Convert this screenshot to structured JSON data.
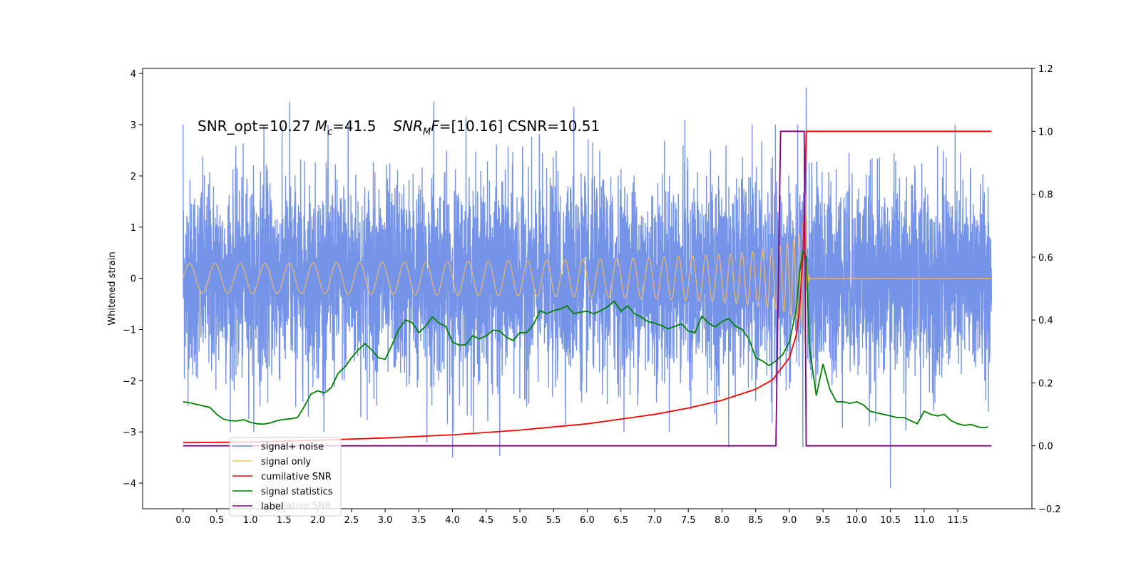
{
  "chart_data": {
    "type": "line",
    "title": "",
    "xlabel": "",
    "ylabel": "Whitened strain",
    "xlim": [
      -0.6,
      12.6
    ],
    "xticks": [
      "0.0",
      "0.5",
      "1.0",
      "1.5",
      "2.0",
      "2.5",
      "3.0",
      "3.5",
      "4.0",
      "4.5",
      "5.0",
      "5.5",
      "6.0",
      "6.5",
      "7.0",
      "7.5",
      "8.0",
      "8.5",
      "9.0",
      "9.5",
      "10.0",
      "10.5",
      "11.0",
      "11.5"
    ],
    "ylim": [
      -4.5,
      4.1
    ],
    "yticks": [
      "4",
      "3",
      "2",
      "1",
      "0",
      "−1",
      "−2",
      "−3",
      "−4"
    ],
    "y2lim": [
      -0.2,
      1.2
    ],
    "y2ticks": [
      "1.2",
      "1.0",
      "0.8",
      "0.6",
      "0.4",
      "0.2",
      "0.0",
      "−0.2"
    ],
    "grid": false,
    "annotation": {
      "prefix": "SNR_opt=10.27 ",
      "mc_sym": "M",
      "mc_sub": "c",
      "mc_val": "=41.5",
      "snr_sym": "SNR",
      "snr_sub": "M",
      "snr_sym2": "F",
      "snr_rest": "=[10.16] CSNR=10.51"
    },
    "legend": {
      "placement": "lower-left",
      "entries": [
        {
          "label": "signal+ noise",
          "color": "#6f8ee6"
        },
        {
          "label": "signal only",
          "color": "#ffbf55"
        },
        {
          "label": "cumilative SNR",
          "color": "#ff0000"
        },
        {
          "label": "signal statistics",
          "color": "#008000"
        },
        {
          "label": "label",
          "color": "#800080"
        }
      ],
      "ghost_text": "cumilative SNR"
    },
    "series": [
      {
        "name": "signal+ noise",
        "axis": "left",
        "color": "#6f8ee6",
        "x_start": 0.0,
        "x_end": 12.0,
        "envelope_std": 0.95,
        "peaks": [
          {
            "x": 0.0,
            "y": 3.0
          },
          {
            "x": 1.2,
            "y": 3.0
          },
          {
            "x": 1.58,
            "y": 3.45
          },
          {
            "x": 2.45,
            "y": 3.05
          },
          {
            "x": 3.72,
            "y": 3.45
          },
          {
            "x": 4.2,
            "y": 3.15
          },
          {
            "x": 5.8,
            "y": 3.35
          },
          {
            "x": 7.45,
            "y": 3.1
          },
          {
            "x": 9.25,
            "y": 3.72
          },
          {
            "x": 3.62,
            "y": -3.2
          },
          {
            "x": 4.0,
            "y": -3.5
          },
          {
            "x": 4.7,
            "y": -3.47
          },
          {
            "x": 8.1,
            "y": -3.3
          },
          {
            "x": 10.5,
            "y": -4.1
          },
          {
            "x": 9.2,
            "y": -3.3
          }
        ]
      },
      {
        "name": "signal only",
        "axis": "left",
        "color": "#ffbf55",
        "x_start": 0.0,
        "x_end": 12.0,
        "chirp_merger_x": 9.25,
        "chirp_peak_amplitude": 2.2
      },
      {
        "name": "cumilative SNR",
        "axis": "right",
        "color": "#ff0000",
        "x": [
          0.0,
          1.0,
          2.0,
          3.0,
          4.0,
          5.0,
          6.0,
          7.0,
          7.5,
          8.0,
          8.5,
          8.75,
          9.0,
          9.1,
          9.15,
          9.2,
          9.23,
          9.25,
          9.5,
          10.0,
          11.0,
          12.0
        ],
        "y": [
          0.01,
          0.012,
          0.018,
          0.025,
          0.035,
          0.05,
          0.07,
          0.1,
          0.12,
          0.145,
          0.18,
          0.21,
          0.28,
          0.35,
          0.43,
          0.6,
          0.8,
          1.0,
          1.0,
          1.0,
          1.0,
          1.0
        ]
      },
      {
        "name": "signal statistics",
        "axis": "right",
        "color": "#008000",
        "x": [
          0.0,
          0.1,
          0.2,
          0.3,
          0.4,
          0.5,
          0.6,
          0.7,
          0.8,
          0.9,
          1.0,
          1.1,
          1.2,
          1.3,
          1.4,
          1.5,
          1.6,
          1.7,
          1.8,
          1.9,
          2.0,
          2.1,
          2.2,
          2.3,
          2.4,
          2.5,
          2.6,
          2.7,
          2.8,
          2.9,
          3.0,
          3.1,
          3.2,
          3.3,
          3.4,
          3.5,
          3.6,
          3.7,
          3.8,
          3.9,
          4.0,
          4.1,
          4.2,
          4.3,
          4.4,
          4.5,
          4.6,
          4.7,
          4.8,
          4.9,
          5.0,
          5.1,
          5.2,
          5.3,
          5.4,
          5.5,
          5.6,
          5.7,
          5.8,
          5.9,
          6.0,
          6.1,
          6.2,
          6.3,
          6.4,
          6.5,
          6.6,
          6.7,
          6.8,
          6.9,
          7.0,
          7.1,
          7.2,
          7.3,
          7.4,
          7.5,
          7.6,
          7.7,
          7.8,
          7.9,
          8.0,
          8.1,
          8.2,
          8.3,
          8.4,
          8.5,
          8.6,
          8.7,
          8.8,
          8.9,
          9.0,
          9.1,
          9.15,
          9.2,
          9.25,
          9.3,
          9.4,
          9.5,
          9.6,
          9.7,
          9.8,
          9.9,
          10.0,
          10.1,
          10.2,
          10.3,
          10.4,
          10.5,
          10.6,
          10.7,
          10.8,
          10.9,
          11.0,
          11.1,
          11.2,
          11.3,
          11.4,
          11.5,
          11.6,
          11.7,
          11.8,
          11.9,
          11.95
        ],
        "y": [
          0.14,
          0.137,
          0.132,
          0.127,
          0.122,
          0.1,
          0.085,
          0.08,
          0.079,
          0.083,
          0.075,
          0.07,
          0.069,
          0.073,
          0.08,
          0.084,
          0.086,
          0.09,
          0.125,
          0.165,
          0.175,
          0.168,
          0.185,
          0.23,
          0.25,
          0.28,
          0.305,
          0.325,
          0.305,
          0.28,
          0.275,
          0.32,
          0.37,
          0.4,
          0.392,
          0.36,
          0.38,
          0.41,
          0.39,
          0.38,
          0.33,
          0.32,
          0.322,
          0.35,
          0.34,
          0.35,
          0.368,
          0.365,
          0.345,
          0.335,
          0.36,
          0.36,
          0.385,
          0.43,
          0.42,
          0.43,
          0.435,
          0.445,
          0.42,
          0.425,
          0.428,
          0.42,
          0.43,
          0.442,
          0.46,
          0.428,
          0.445,
          0.42,
          0.41,
          0.395,
          0.39,
          0.383,
          0.372,
          0.38,
          0.388,
          0.365,
          0.36,
          0.412,
          0.39,
          0.378,
          0.395,
          0.405,
          0.38,
          0.37,
          0.34,
          0.28,
          0.27,
          0.255,
          0.27,
          0.29,
          0.33,
          0.43,
          0.55,
          0.62,
          0.6,
          0.31,
          0.16,
          0.26,
          0.18,
          0.14,
          0.14,
          0.135,
          0.14,
          0.13,
          0.11,
          0.105,
          0.1,
          0.095,
          0.09,
          0.09,
          0.08,
          0.07,
          0.11,
          0.1,
          0.095,
          0.1,
          0.08,
          0.07,
          0.065,
          0.068,
          0.06,
          0.058,
          0.06
        ]
      },
      {
        "name": "label",
        "axis": "right",
        "color": "#800080",
        "x": [
          0.0,
          8.8,
          8.87,
          9.22,
          9.25,
          9.3,
          12.0
        ],
        "y": [
          0.0,
          0.0,
          1.0,
          1.0,
          0.0,
          0.0,
          0.0
        ]
      }
    ]
  }
}
